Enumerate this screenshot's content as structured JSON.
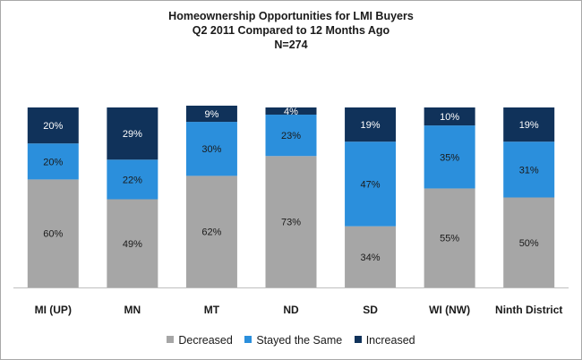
{
  "chart_data": {
    "type": "bar",
    "stacked": true,
    "percent": true,
    "title": [
      "Homeownership Opportunities for LMI Buyers",
      "Q2 2011 Compared to 12 Months Ago",
      "N=274"
    ],
    "categories": [
      "MI (UP)",
      "MN",
      "MT",
      "ND",
      "SD",
      "WI (NW)",
      "Ninth District"
    ],
    "series": [
      {
        "name": "Decreased",
        "color": "#a6a6a6",
        "label_color": "#1a1a1a",
        "values": [
          60,
          49,
          62,
          73,
          34,
          55,
          50
        ]
      },
      {
        "name": "Stayed the Same",
        "color": "#2b8fdc",
        "label_color": "#1a1a1a",
        "values": [
          20,
          22,
          30,
          23,
          47,
          35,
          31
        ]
      },
      {
        "name": "Increased",
        "color": "#10325a",
        "label_color": "#ffffff",
        "values": [
          20,
          29,
          9,
          4,
          19,
          10,
          19
        ]
      }
    ],
    "ylim": [
      0,
      100
    ],
    "grid": false,
    "legend": "bottom",
    "data_labels": true
  }
}
